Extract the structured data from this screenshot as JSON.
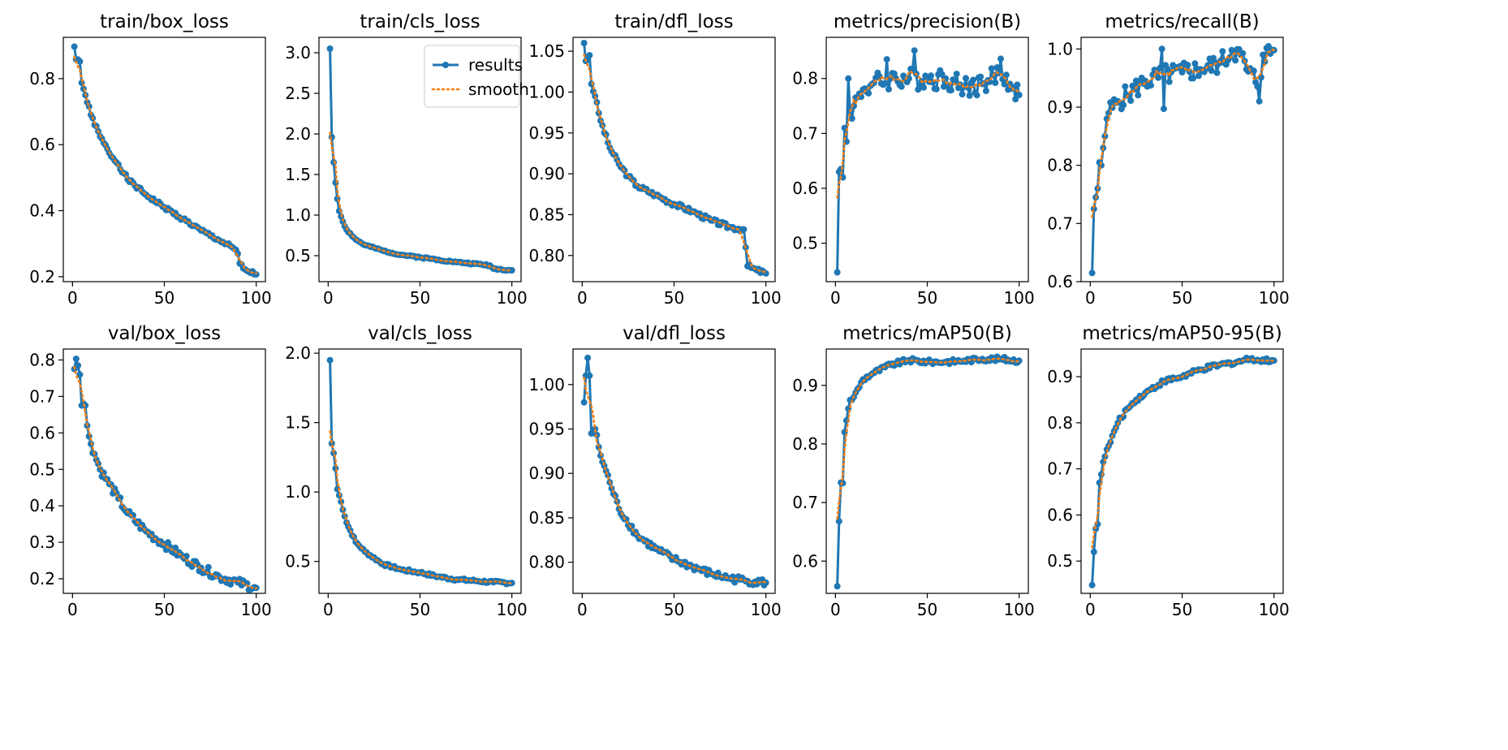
{
  "colors": {
    "results": "#1f77b4",
    "smooth": "#ff7f0e",
    "axes": "#000000",
    "background": "#ffffff"
  },
  "legend": {
    "entries": [
      "results",
      "smooth"
    ],
    "placement": "upper-right of train/cls_loss"
  },
  "chart_data": [
    {
      "type": "line",
      "title": "train/box_loss",
      "xlim": [
        -5,
        105
      ],
      "ylim": [
        0.185,
        0.925
      ],
      "xticks": [
        0,
        50,
        100
      ],
      "yticks": [
        0.2,
        0.4,
        0.6,
        0.8
      ],
      "x_range": [
        1,
        100
      ],
      "anchors": [
        [
          1,
          0.897
        ],
        [
          2,
          0.858
        ],
        [
          3,
          0.858
        ],
        [
          4,
          0.852
        ],
        [
          5,
          0.787
        ],
        [
          7,
          0.75
        ],
        [
          10,
          0.69
        ],
        [
          15,
          0.625
        ],
        [
          20,
          0.575
        ],
        [
          25,
          0.54
        ],
        [
          30,
          0.495
        ],
        [
          40,
          0.448
        ],
        [
          50,
          0.41
        ],
        [
          60,
          0.375
        ],
        [
          70,
          0.34
        ],
        [
          80,
          0.31
        ],
        [
          88,
          0.285
        ],
        [
          90,
          0.27
        ],
        [
          91,
          0.24
        ],
        [
          93,
          0.225
        ],
        [
          96,
          0.215
        ],
        [
          100,
          0.207
        ]
      ],
      "jitter": 0.006,
      "seed": 1
    },
    {
      "type": "line",
      "title": "train/cls_loss",
      "xlim": [
        -5,
        105
      ],
      "ylim": [
        0.18,
        3.19
      ],
      "xticks": [
        0,
        50,
        100
      ],
      "yticks": [
        0.5,
        1.0,
        1.5,
        2.0,
        2.5,
        3.0
      ],
      "x_range": [
        1,
        100
      ],
      "anchors": [
        [
          1,
          3.05
        ],
        [
          2,
          1.96
        ],
        [
          3,
          1.65
        ],
        [
          4,
          1.4
        ],
        [
          5,
          1.2
        ],
        [
          6,
          1.05
        ],
        [
          8,
          0.92
        ],
        [
          10,
          0.82
        ],
        [
          15,
          0.7
        ],
        [
          20,
          0.63
        ],
        [
          30,
          0.56
        ],
        [
          40,
          0.51
        ],
        [
          50,
          0.48
        ],
        [
          60,
          0.45
        ],
        [
          70,
          0.42
        ],
        [
          80,
          0.4
        ],
        [
          88,
          0.38
        ],
        [
          90,
          0.34
        ],
        [
          100,
          0.32
        ]
      ],
      "jitter": 0.01,
      "seed": 2,
      "legend": true
    },
    {
      "type": "line",
      "title": "train/dfl_loss",
      "xlim": [
        -5,
        105
      ],
      "ylim": [
        0.768,
        1.067
      ],
      "xticks": [
        0,
        50,
        100
      ],
      "yticks": [
        0.8,
        0.85,
        0.9,
        0.95,
        1.0,
        1.05
      ],
      "x_range": [
        1,
        100
      ],
      "anchors": [
        [
          1,
          1.06
        ],
        [
          2,
          1.038
        ],
        [
          3,
          1.04
        ],
        [
          4,
          1.045
        ],
        [
          5,
          1.01
        ],
        [
          7,
          0.995
        ],
        [
          10,
          0.965
        ],
        [
          15,
          0.932
        ],
        [
          20,
          0.912
        ],
        [
          25,
          0.897
        ],
        [
          30,
          0.885
        ],
        [
          40,
          0.874
        ],
        [
          50,
          0.863
        ],
        [
          60,
          0.854
        ],
        [
          70,
          0.843
        ],
        [
          80,
          0.835
        ],
        [
          88,
          0.832
        ],
        [
          89,
          0.81
        ],
        [
          90,
          0.787
        ],
        [
          95,
          0.782
        ],
        [
          100,
          0.778
        ]
      ],
      "jitter": 0.003,
      "seed": 3
    },
    {
      "type": "line",
      "title": "metrics/precision(B)",
      "xlim": [
        -5,
        105
      ],
      "ylim": [
        0.43,
        0.875
      ],
      "xticks": [
        0,
        50,
        100
      ],
      "yticks": [
        0.5,
        0.6,
        0.7,
        0.8
      ],
      "x_range": [
        1,
        100
      ],
      "anchors": [
        [
          1,
          0.447
        ],
        [
          2,
          0.63
        ],
        [
          3,
          0.635
        ],
        [
          4,
          0.62
        ],
        [
          5,
          0.71
        ],
        [
          6,
          0.685
        ],
        [
          7,
          0.8
        ],
        [
          8,
          0.74
        ],
        [
          10,
          0.75
        ],
        [
          15,
          0.78
        ],
        [
          20,
          0.79
        ],
        [
          30,
          0.8
        ],
        [
          40,
          0.8
        ],
        [
          50,
          0.8
        ],
        [
          60,
          0.8
        ],
        [
          70,
          0.785
        ],
        [
          80,
          0.79
        ],
        [
          90,
          0.81
        ],
        [
          95,
          0.79
        ],
        [
          100,
          0.77
        ]
      ],
      "jitter": 0.02,
      "seed": 4,
      "spikes": [
        [
          43,
          0.851
        ],
        [
          28,
          0.835
        ],
        [
          90,
          0.836
        ]
      ]
    },
    {
      "type": "line",
      "title": "metrics/recall(B)",
      "xlim": [
        -5,
        105
      ],
      "ylim": [
        0.6,
        1.02
      ],
      "xticks": [
        0,
        50,
        100
      ],
      "yticks": [
        0.6,
        0.7,
        0.8,
        0.9,
        1.0
      ],
      "x_range": [
        1,
        100
      ],
      "anchors": [
        [
          1,
          0.615
        ],
        [
          2,
          0.725
        ],
        [
          3,
          0.745
        ],
        [
          4,
          0.76
        ],
        [
          5,
          0.805
        ],
        [
          6,
          0.8
        ],
        [
          7,
          0.83
        ],
        [
          8,
          0.85
        ],
        [
          9,
          0.88
        ],
        [
          10,
          0.89
        ],
        [
          15,
          0.91
        ],
        [
          20,
          0.92
        ],
        [
          30,
          0.945
        ],
        [
          40,
          0.955
        ],
        [
          50,
          0.96
        ],
        [
          60,
          0.965
        ],
        [
          70,
          0.975
        ],
        [
          78,
          0.995
        ],
        [
          82,
          0.99
        ],
        [
          85,
          0.965
        ],
        [
          92,
          0.94
        ],
        [
          94,
          0.99
        ],
        [
          100,
          0.998
        ]
      ],
      "jitter": 0.018,
      "seed": 5,
      "spikes": [
        [
          40,
          0.897
        ],
        [
          39,
          1.0
        ],
        [
          92,
          0.91
        ],
        [
          77,
          0.998
        ]
      ]
    },
    {
      "type": "line",
      "title": "val/box_loss",
      "xlim": [
        -5,
        105
      ],
      "ylim": [
        0.16,
        0.83
      ],
      "xticks": [
        0,
        50,
        100
      ],
      "yticks": [
        0.2,
        0.3,
        0.4,
        0.5,
        0.6,
        0.7,
        0.8
      ],
      "x_range": [
        1,
        100
      ],
      "anchors": [
        [
          1,
          0.775
        ],
        [
          2,
          0.803
        ],
        [
          3,
          0.785
        ],
        [
          4,
          0.76
        ],
        [
          5,
          0.675
        ],
        [
          7,
          0.675
        ],
        [
          8,
          0.62
        ],
        [
          10,
          0.57
        ],
        [
          15,
          0.5
        ],
        [
          20,
          0.46
        ],
        [
          25,
          0.42
        ],
        [
          30,
          0.38
        ],
        [
          40,
          0.33
        ],
        [
          50,
          0.295
        ],
        [
          60,
          0.26
        ],
        [
          70,
          0.23
        ],
        [
          80,
          0.205
        ],
        [
          90,
          0.19
        ],
        [
          100,
          0.175
        ]
      ],
      "jitter": 0.012,
      "seed": 6
    },
    {
      "type": "line",
      "title": "val/cls_loss",
      "xlim": [
        -5,
        105
      ],
      "ylim": [
        0.27,
        2.03
      ],
      "xticks": [
        0,
        50,
        100
      ],
      "yticks": [
        0.5,
        1.0,
        1.5,
        2.0
      ],
      "x_range": [
        1,
        100
      ],
      "anchors": [
        [
          1,
          1.95
        ],
        [
          2,
          1.35
        ],
        [
          3,
          1.28
        ],
        [
          4,
          1.17
        ],
        [
          5,
          1.02
        ],
        [
          7,
          0.93
        ],
        [
          10,
          0.78
        ],
        [
          15,
          0.64
        ],
        [
          20,
          0.57
        ],
        [
          30,
          0.48
        ],
        [
          40,
          0.44
        ],
        [
          50,
          0.42
        ],
        [
          60,
          0.39
        ],
        [
          70,
          0.37
        ],
        [
          80,
          0.36
        ],
        [
          90,
          0.35
        ],
        [
          100,
          0.345
        ]
      ],
      "jitter": 0.01,
      "seed": 7
    },
    {
      "type": "line",
      "title": "val/dfl_loss",
      "xlim": [
        -5,
        105
      ],
      "ylim": [
        0.765,
        1.04
      ],
      "xticks": [
        0,
        50,
        100
      ],
      "yticks": [
        0.8,
        0.85,
        0.9,
        0.95,
        1.0
      ],
      "x_range": [
        1,
        100
      ],
      "anchors": [
        [
          1,
          0.98
        ],
        [
          2,
          1.01
        ],
        [
          3,
          1.03
        ],
        [
          4,
          1.01
        ],
        [
          5,
          0.945
        ],
        [
          7,
          0.95
        ],
        [
          10,
          0.92
        ],
        [
          15,
          0.89
        ],
        [
          20,
          0.86
        ],
        [
          30,
          0.83
        ],
        [
          40,
          0.815
        ],
        [
          50,
          0.803
        ],
        [
          60,
          0.795
        ],
        [
          70,
          0.787
        ],
        [
          80,
          0.782
        ],
        [
          90,
          0.779
        ],
        [
          100,
          0.777
        ]
      ],
      "jitter": 0.004,
      "seed": 8
    },
    {
      "type": "line",
      "title": "metrics/mAP50(B)",
      "xlim": [
        -5,
        105
      ],
      "ylim": [
        0.545,
        0.962
      ],
      "xticks": [
        0,
        50,
        100
      ],
      "yticks": [
        0.6,
        0.7,
        0.8,
        0.9
      ],
      "x_range": [
        1,
        100
      ],
      "anchors": [
        [
          1,
          0.557
        ],
        [
          2,
          0.668
        ],
        [
          3,
          0.734
        ],
        [
          4,
          0.733
        ],
        [
          5,
          0.82
        ],
        [
          6,
          0.84
        ],
        [
          7,
          0.86
        ],
        [
          8,
          0.875
        ],
        [
          10,
          0.88
        ],
        [
          15,
          0.91
        ],
        [
          20,
          0.92
        ],
        [
          30,
          0.935
        ],
        [
          40,
          0.943
        ],
        [
          50,
          0.94
        ],
        [
          60,
          0.94
        ],
        [
          70,
          0.942
        ],
        [
          80,
          0.945
        ],
        [
          90,
          0.945
        ],
        [
          100,
          0.942
        ]
      ],
      "jitter": 0.004,
      "seed": 9
    },
    {
      "type": "line",
      "title": "metrics/mAP50-95(B)",
      "xlim": [
        -5,
        105
      ],
      "ylim": [
        0.43,
        0.96
      ],
      "xticks": [
        0,
        50,
        100
      ],
      "yticks": [
        0.5,
        0.6,
        0.7,
        0.8,
        0.9
      ],
      "x_range": [
        1,
        100
      ],
      "anchors": [
        [
          1,
          0.448
        ],
        [
          2,
          0.52
        ],
        [
          3,
          0.57
        ],
        [
          4,
          0.58
        ],
        [
          5,
          0.67
        ],
        [
          7,
          0.715
        ],
        [
          10,
          0.75
        ],
        [
          15,
          0.8
        ],
        [
          20,
          0.83
        ],
        [
          25,
          0.85
        ],
        [
          30,
          0.865
        ],
        [
          40,
          0.89
        ],
        [
          50,
          0.9
        ],
        [
          60,
          0.915
        ],
        [
          70,
          0.925
        ],
        [
          80,
          0.932
        ],
        [
          88,
          0.94
        ],
        [
          92,
          0.935
        ],
        [
          100,
          0.935
        ]
      ],
      "jitter": 0.005,
      "seed": 10
    }
  ]
}
